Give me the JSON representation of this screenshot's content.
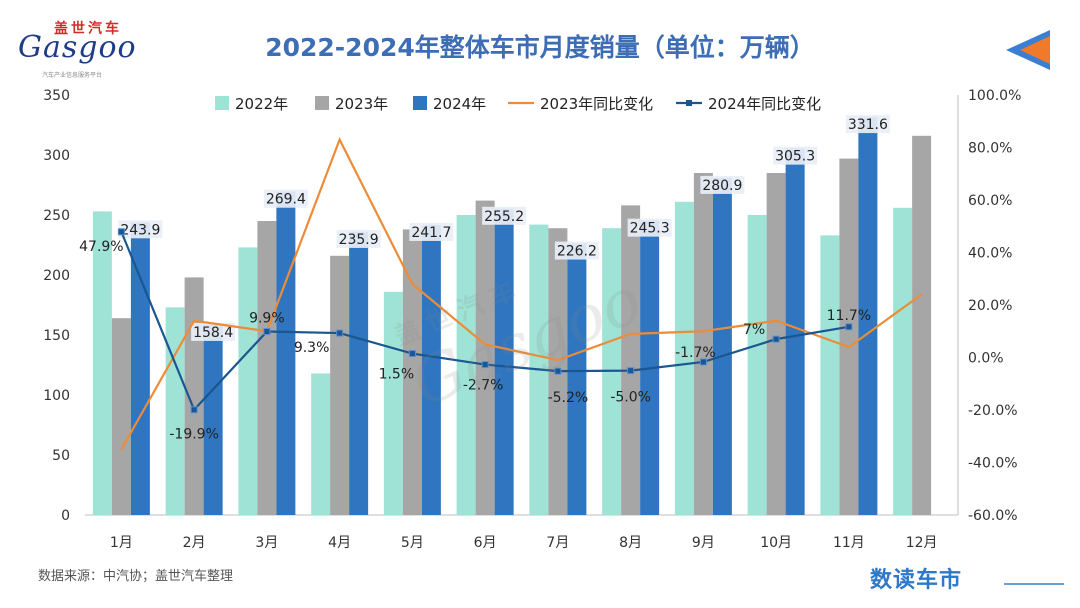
{
  "header": {
    "logo_cn": "盖世汽车",
    "logo_en": "Gasgoo",
    "logo_sub": "汽车产业信息服务平台",
    "title": "2022-2024年整体车市月度销量（单位：万辆）"
  },
  "footer": {
    "source": "数据来源：中汽协；盖世汽车整理",
    "brand": "数读车市"
  },
  "colors": {
    "s2022": "#9ee3d6",
    "s2023": "#a6a6a6",
    "s2024": "#2f75c0",
    "yoy2023": "#ed8c38",
    "yoy2024": "#1a5690",
    "title": "#3d6db4",
    "corner_blue": "#3b7fd4",
    "corner_orange": "#ee7a2a"
  },
  "chart_data": {
    "type": "bar+line",
    "title": "2022-2024年整体车市月度销量（单位：万辆）",
    "categories": [
      "1月",
      "2月",
      "3月",
      "4月",
      "5月",
      "6月",
      "7月",
      "8月",
      "9月",
      "10月",
      "11月",
      "12月"
    ],
    "left_axis": {
      "min": 0,
      "max": 350,
      "ticks": [
        0,
        50,
        100,
        150,
        200,
        250,
        300,
        350
      ]
    },
    "right_axis": {
      "min": -60,
      "max": 100,
      "ticks": [
        "-60.0%",
        "-40.0%",
        "-20.0%",
        "0.0%",
        "20.0%",
        "40.0%",
        "60.0%",
        "80.0%",
        "100.0%"
      ]
    },
    "bar_series": [
      {
        "name": "2022年",
        "values": [
          253,
          173,
          223,
          118,
          186,
          250,
          242,
          239,
          261,
          250,
          233,
          256
        ]
      },
      {
        "name": "2023年",
        "values": [
          164,
          198,
          245,
          216,
          238,
          262,
          239,
          258,
          285,
          285,
          297,
          316
        ]
      },
      {
        "name": "2024年",
        "values": [
          243.9,
          158.4,
          269.4,
          235.9,
          241.7,
          255.2,
          226.2,
          245.3,
          280.9,
          305.3,
          331.6,
          null
        ],
        "labels": [
          "243.9",
          "158.4",
          "269.4",
          "235.9",
          "241.7",
          "255.2",
          "226.2",
          "245.3",
          "280.9",
          "305.3",
          "331.6",
          ""
        ]
      }
    ],
    "line_series": [
      {
        "name": "2023年同比变化",
        "values": [
          -35,
          14,
          10,
          83,
          28,
          5,
          -1,
          9,
          10,
          14,
          4,
          24
        ]
      },
      {
        "name": "2024年同比变化",
        "values": [
          47.9,
          -19.9,
          9.9,
          9.3,
          1.5,
          -2.7,
          -5.2,
          -5.0,
          -1.7,
          7,
          11.7,
          null
        ],
        "labels": [
          "47.9%",
          "-19.9%",
          "9.9%",
          "9.3%",
          "1.5%",
          "-2.7%",
          "-5.2%",
          "-5.0%",
          "-1.7%",
          "7%",
          "11.7%",
          ""
        ]
      }
    ],
    "legend": [
      "2022年",
      "2023年",
      "2024年",
      "2023年同比变化",
      "2024年同比变化"
    ]
  }
}
